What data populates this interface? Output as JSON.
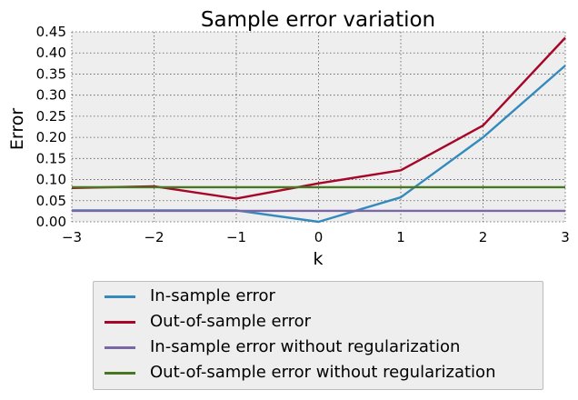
{
  "chart_data": {
    "type": "line",
    "title": "Sample error variation",
    "xlabel": "k",
    "ylabel": "Error",
    "xlim": [
      -3,
      3
    ],
    "ylim": [
      0,
      0.45
    ],
    "xticks": [
      "−3",
      "−2",
      "−1",
      "0",
      "1",
      "2",
      "3"
    ],
    "xtick_values": [
      -3,
      -2,
      -1,
      0,
      1,
      2,
      3
    ],
    "yticks": [
      "0.00",
      "0.05",
      "0.10",
      "0.15",
      "0.20",
      "0.25",
      "0.30",
      "0.35",
      "0.40",
      "0.45"
    ],
    "ytick_values": [
      0,
      0.05,
      0.1,
      0.15,
      0.2,
      0.25,
      0.3,
      0.35,
      0.4,
      0.45
    ],
    "grid": true,
    "legend_position": "below",
    "x": [
      -3,
      -2,
      -1,
      0,
      1,
      2,
      3
    ],
    "series": [
      {
        "name": "In-sample error",
        "color": "#348abd",
        "values": [
          0.027,
          0.027,
          0.027,
          0.0,
          0.058,
          0.2,
          0.37
        ]
      },
      {
        "name": "Out-of-sample error",
        "color": "#a60628",
        "values": [
          0.08,
          0.084,
          0.055,
          0.091,
          0.122,
          0.228,
          0.436
        ]
      },
      {
        "name": "In-sample error without regularization",
        "color": "#7a68a6",
        "values": [
          0.026,
          0.026,
          0.026,
          0.026,
          0.026,
          0.026,
          0.026
        ]
      },
      {
        "name": "Out-of-sample error without regularization",
        "color": "#467821",
        "values": [
          0.082,
          0.082,
          0.082,
          0.082,
          0.082,
          0.082,
          0.082
        ]
      }
    ]
  }
}
